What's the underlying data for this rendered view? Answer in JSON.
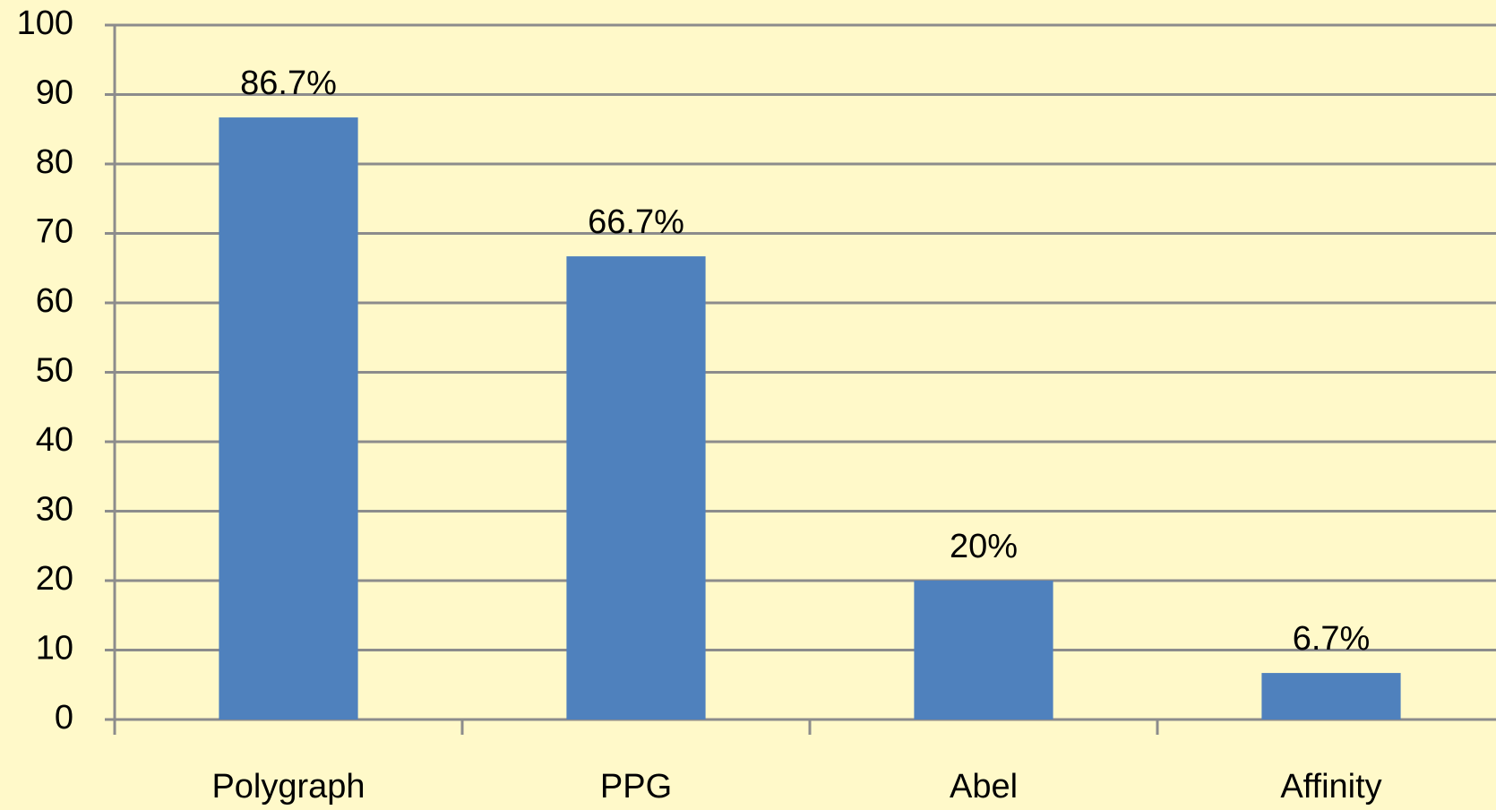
{
  "chart_data": {
    "type": "bar",
    "categories": [
      "Polygraph",
      "PPG",
      "Abel",
      "Affinity"
    ],
    "values": [
      86.7,
      66.7,
      20,
      6.7
    ],
    "value_labels": [
      "86.7%",
      "66.7%",
      "20%",
      "6.7%"
    ],
    "color": "#4f81bd",
    "ylim": [
      0,
      100
    ],
    "yticks": [
      0,
      10,
      20,
      30,
      40,
      50,
      60,
      70,
      80,
      90,
      100
    ],
    "grid": true
  }
}
